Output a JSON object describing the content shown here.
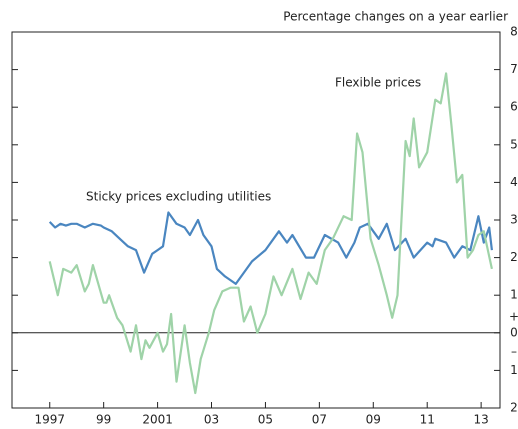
{
  "chart_data": {
    "type": "line",
    "subtitle": "Percentage changes on a year earlier",
    "annotations": [
      "Sticky prices excluding utilities",
      "Flexible prices"
    ],
    "sign_labels": [
      "+",
      "–"
    ],
    "xlim": [
      1995.6,
      2013.7
    ],
    "xticks": [
      {
        "value": 1997,
        "label": "1997"
      },
      {
        "value": 1999,
        "label": "99"
      },
      {
        "value": 2001,
        "label": "2001"
      },
      {
        "value": 2003,
        "label": "03"
      },
      {
        "value": 2005,
        "label": "05"
      },
      {
        "value": 2007,
        "label": "07"
      },
      {
        "value": 2009,
        "label": "09"
      },
      {
        "value": 2011,
        "label": "11"
      },
      {
        "value": 2013,
        "label": "13"
      }
    ],
    "ylim": [
      -2,
      8
    ],
    "yticks": [
      {
        "value": -2,
        "label": "2"
      },
      {
        "value": -1,
        "label": "1"
      },
      0,
      1,
      2,
      3,
      4,
      5,
      6,
      7,
      8
    ],
    "zero_line": true,
    "series": [
      {
        "name": "Sticky prices excluding utilities",
        "color": "#4a86c0",
        "x": [
          1997.0,
          1997.2,
          1997.4,
          1997.6,
          1997.8,
          1998.0,
          1998.3,
          1998.6,
          1998.9,
          1999.0,
          1999.3,
          1999.6,
          1999.9,
          2000.2,
          2000.5,
          2000.8,
          2001.0,
          2001.2,
          2001.4,
          2001.7,
          2002.0,
          2002.2,
          2002.5,
          2002.7,
          2003.0,
          2003.2,
          2003.5,
          2003.9,
          2004.2,
          2004.5,
          2005.0,
          2005.5,
          2005.8,
          2006.0,
          2006.5,
          2006.8,
          2007.2,
          2007.7,
          2008.0,
          2008.3,
          2008.5,
          2008.8,
          2009.2,
          2009.5,
          2009.8,
          2010.2,
          2010.5,
          2011.0,
          2011.2,
          2011.3,
          2011.7,
          2012.0,
          2012.3,
          2012.6,
          2012.9,
          2013.1,
          2013.3,
          2013.4
        ],
        "values": [
          2.95,
          2.8,
          2.9,
          2.85,
          2.9,
          2.9,
          2.8,
          2.9,
          2.85,
          2.8,
          2.7,
          2.5,
          2.3,
          2.2,
          1.6,
          2.1,
          2.2,
          2.3,
          3.2,
          2.9,
          2.8,
          2.6,
          3.0,
          2.6,
          2.3,
          1.7,
          1.5,
          1.3,
          1.6,
          1.9,
          2.2,
          2.7,
          2.4,
          2.6,
          2.0,
          2.0,
          2.6,
          2.4,
          2.0,
          2.4,
          2.8,
          2.9,
          2.5,
          2.9,
          2.2,
          2.5,
          2.0,
          2.4,
          2.3,
          2.5,
          2.4,
          2.0,
          2.3,
          2.2,
          3.1,
          2.4,
          2.8,
          2.2
        ]
      },
      {
        "name": "Flexible prices",
        "color": "#9fd3a8",
        "x": [
          1997.0,
          1997.3,
          1997.5,
          1997.8,
          1998.0,
          1998.3,
          1998.45,
          1998.6,
          1999.0,
          1999.1,
          1999.2,
          1999.5,
          1999.7,
          2000.0,
          2000.2,
          2000.4,
          2000.55,
          2000.7,
          2001.0,
          2001.2,
          2001.35,
          2001.5,
          2001.7,
          2002.0,
          2002.2,
          2002.4,
          2002.6,
          2002.9,
          2003.1,
          2003.4,
          2003.7,
          2004.0,
          2004.2,
          2004.45,
          2004.7,
          2005.0,
          2005.3,
          2005.6,
          2006.0,
          2006.3,
          2006.6,
          2006.9,
          2007.2,
          2007.5,
          2007.9,
          2008.2,
          2008.4,
          2008.6,
          2008.9,
          2009.2,
          2009.5,
          2009.7,
          2009.9,
          2010.2,
          2010.35,
          2010.5,
          2010.7,
          2011.0,
          2011.3,
          2011.5,
          2011.7,
          2011.9,
          2012.1,
          2012.3,
          2012.5,
          2012.7,
          2012.9,
          2013.1,
          2013.4
        ],
        "values": [
          1.9,
          1.0,
          1.7,
          1.6,
          1.8,
          1.1,
          1.3,
          1.8,
          0.8,
          0.8,
          1.0,
          0.4,
          0.2,
          -0.5,
          0.2,
          -0.7,
          -0.2,
          -0.4,
          0.0,
          -0.5,
          -0.3,
          0.5,
          -1.3,
          0.2,
          -0.8,
          -1.6,
          -0.7,
          0.0,
          0.6,
          1.1,
          1.2,
          1.2,
          0.3,
          0.7,
          0.0,
          0.5,
          1.5,
          1.0,
          1.7,
          0.9,
          1.6,
          1.3,
          2.2,
          2.5,
          3.1,
          3.0,
          5.3,
          4.8,
          2.5,
          1.8,
          1.0,
          0.4,
          1.0,
          5.1,
          4.7,
          5.7,
          4.4,
          4.8,
          6.2,
          6.1,
          6.9,
          5.5,
          4.0,
          4.2,
          2.0,
          2.2,
          2.6,
          2.7,
          1.7
        ]
      }
    ]
  }
}
